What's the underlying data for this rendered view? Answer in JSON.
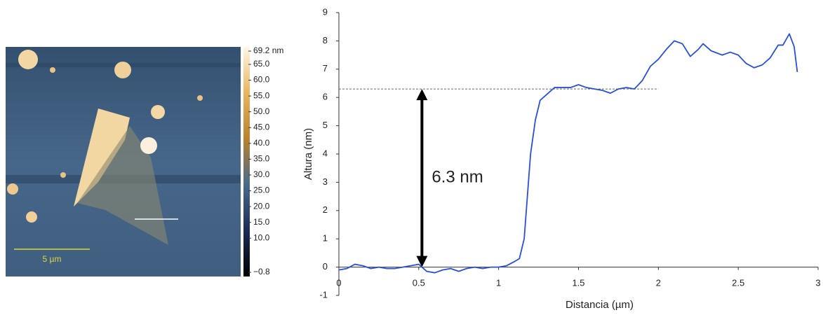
{
  "afm_image": {
    "scale_bar": "5 µm",
    "colorbar": {
      "lim": [
        -0.8,
        69.2
      ],
      "ticks": [
        {
          "value": 69.2,
          "label": "69.2 nm"
        },
        {
          "value": 65,
          "label": "65.0"
        },
        {
          "value": 60,
          "label": "60.0"
        },
        {
          "value": 55,
          "label": "55.0"
        },
        {
          "value": 50,
          "label": "50.0"
        },
        {
          "value": 45,
          "label": "45.0"
        },
        {
          "value": 40,
          "label": "40.0"
        },
        {
          "value": 35,
          "label": "35.0"
        },
        {
          "value": 30,
          "label": "30.0"
        },
        {
          "value": 25,
          "label": "25.0"
        },
        {
          "value": 20,
          "label": "20.0"
        },
        {
          "value": 15,
          "label": "15.0"
        },
        {
          "value": 10,
          "label": "10.0"
        },
        {
          "value": -0.8,
          "label": "−0.8"
        }
      ]
    }
  },
  "chart_data": {
    "type": "line",
    "x_label": "Distancia (µm)",
    "y_label": "Altura (nm)",
    "x": [
      0,
      0.05,
      0.1,
      0.15,
      0.2,
      0.25,
      0.3,
      0.35,
      0.4,
      0.45,
      0.5,
      0.55,
      0.6,
      0.65,
      0.7,
      0.75,
      0.8,
      0.85,
      0.9,
      0.95,
      1.0,
      1.05,
      1.1,
      1.13,
      1.16,
      1.18,
      1.2,
      1.23,
      1.26,
      1.3,
      1.35,
      1.4,
      1.45,
      1.5,
      1.55,
      1.6,
      1.65,
      1.7,
      1.75,
      1.8,
      1.85,
      1.9,
      1.95,
      2.0,
      2.05,
      2.1,
      2.15,
      2.2,
      2.25,
      2.28,
      2.33,
      2.4,
      2.45,
      2.5,
      2.55,
      2.6,
      2.65,
      2.7,
      2.75,
      2.78,
      2.82,
      2.85,
      2.87
    ],
    "series": [
      {
        "color": "#2a4fd8",
        "values": [
          -0.1,
          -0.05,
          0.1,
          0.05,
          -0.05,
          0,
          -0.05,
          -0.05,
          0,
          0.05,
          0.1,
          -0.15,
          -0.2,
          -0.1,
          -0.05,
          -0.15,
          -0.05,
          0,
          -0.05,
          0,
          0,
          0.05,
          0.2,
          0.3,
          1.0,
          2.5,
          4.0,
          5.2,
          5.9,
          6.1,
          6.35,
          6.35,
          6.35,
          6.45,
          6.35,
          6.3,
          6.25,
          6.15,
          6.3,
          6.35,
          6.3,
          6.6,
          7.1,
          7.35,
          7.7,
          8.0,
          7.9,
          7.45,
          7.7,
          7.9,
          7.65,
          7.5,
          7.6,
          7.5,
          7.2,
          7.05,
          7.15,
          7.4,
          7.85,
          7.85,
          8.25,
          7.8,
          6.9
        ]
      }
    ],
    "xlim": [
      0,
      3
    ],
    "xticks": [
      0,
      0.5,
      1,
      1.5,
      2,
      2.5,
      3
    ],
    "ylim": [
      -1,
      9
    ],
    "yticks": [
      -1,
      0,
      1,
      2,
      3,
      4,
      5,
      6,
      7,
      8,
      9
    ],
    "reference_line": {
      "y": 6.3,
      "x_range": [
        0,
        2
      ]
    },
    "annotation": {
      "label": "6.3 nm",
      "x": 0.52,
      "from": 0,
      "to": 6.3
    },
    "grid": false
  }
}
